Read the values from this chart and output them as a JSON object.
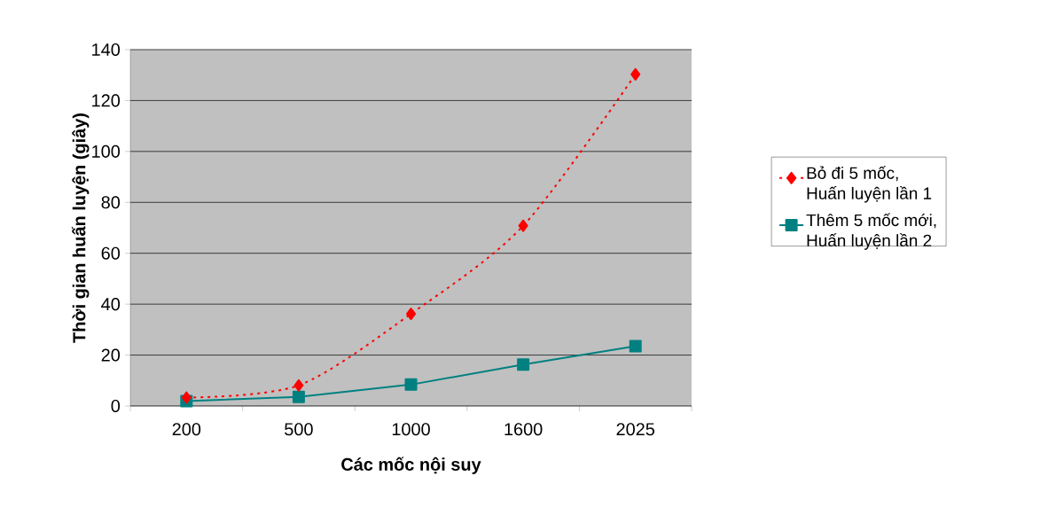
{
  "chart_data": {
    "type": "line",
    "xlabel": "Các mốc nội suy",
    "ylabel": "Thời gian huấn luyện (giây)",
    "categories": [
      "200",
      "500",
      "1000",
      "1600",
      "2025"
    ],
    "series": [
      {
        "name": "Bỏ đi 5 mốc, Huấn luyện lần 1",
        "color": "#ff0000",
        "marker": "diamond",
        "line_style": "dotted",
        "values": [
          3.3,
          8.1,
          36.2,
          70.8,
          130.3
        ]
      },
      {
        "name": "Thêm 5 mốc mới, Huấn luyện lần 2",
        "color": "#008080",
        "marker": "square",
        "line_style": "solid",
        "values": [
          1.9,
          3.6,
          8.4,
          16.3,
          23.5
        ]
      }
    ],
    "ylim": [
      0,
      140
    ],
    "yticks": [
      0,
      20,
      40,
      60,
      80,
      100,
      120,
      140
    ],
    "grid": "y",
    "legend": "right"
  }
}
